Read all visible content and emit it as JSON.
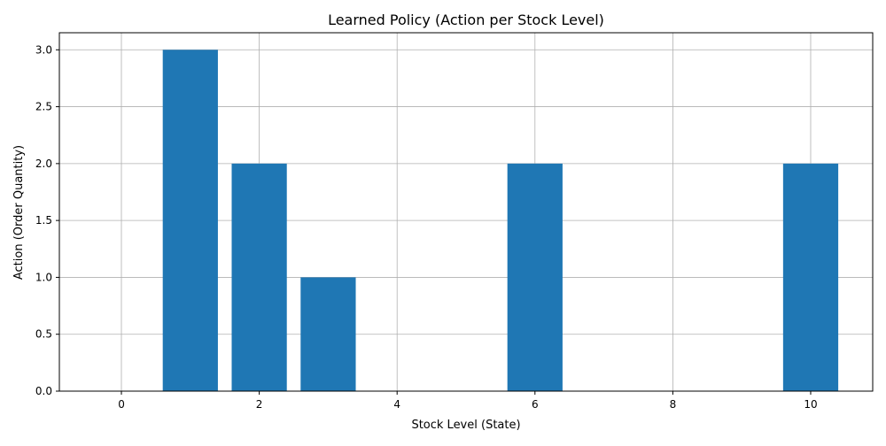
{
  "chart_data": {
    "type": "bar",
    "title": "Learned Policy (Action per Stock Level)",
    "xlabel": "Stock Level (State)",
    "ylabel": "Action (Order Quantity)",
    "x": [
      0,
      1,
      2,
      3,
      4,
      5,
      6,
      7,
      8,
      9,
      10
    ],
    "values": [
      0,
      3,
      2,
      1,
      0,
      0,
      2,
      0,
      0,
      0,
      2
    ],
    "xlim": [
      -0.9,
      10.9
    ],
    "ylim": [
      0,
      3.15
    ],
    "xticks": [
      0,
      2,
      4,
      6,
      8,
      10
    ],
    "xtick_labels": [
      "0",
      "2",
      "4",
      "6",
      "8",
      "10"
    ],
    "yticks": [
      0,
      0.5,
      1,
      1.5,
      2,
      2.5,
      3
    ],
    "ytick_labels": [
      "0.0",
      "0.5",
      "1.0",
      "1.5",
      "2.0",
      "2.5",
      "3.0"
    ],
    "grid": true,
    "bar_color": "#1f77b4",
    "grid_color": "#b0b0b0"
  }
}
